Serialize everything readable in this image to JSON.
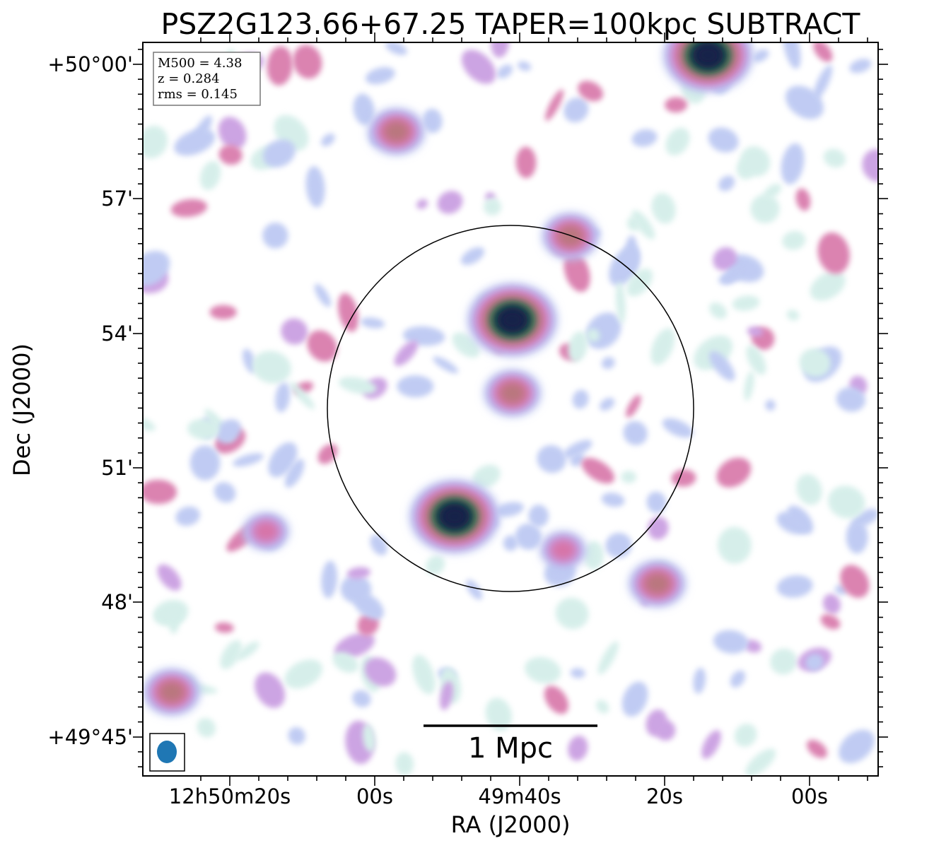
{
  "chart_data": {
    "type": "heatmap",
    "title": "PSZ2G123.66+67.25 TAPER=100kpc SUBTRACT",
    "xlabel": "RA (J2000)",
    "ylabel": "Dec (J2000)",
    "x_ticks": [
      "12h50m20s",
      "00s",
      "49m40s",
      "20s",
      "00s"
    ],
    "y_ticks": [
      "+50°00'",
      "57'",
      "54'",
      "51'",
      "48'",
      "+49°45'"
    ],
    "info": [
      "M500 = 4.38",
      "z = 0.284",
      "rms = 0.145"
    ],
    "scalebar_label": "1 Mpc",
    "colormap": [
      "#d2ede8",
      "#b9c6f2",
      "#c79ae0",
      "#d774a8",
      "#b9777e",
      "#2e7d4e",
      "#15224a"
    ],
    "sources": [
      {
        "ra": "12h49m41s",
        "dec": "+49°54'18\"",
        "level": 7
      },
      {
        "ra": "12h49m49s",
        "dec": "+49°49'55\"",
        "level": 7
      },
      {
        "ra": "12h49m14s",
        "dec": "+50°00'12\"",
        "level": 7
      },
      {
        "ra": "12h49m41s",
        "dec": "+49°52'40\"",
        "level": 4
      },
      {
        "ra": "12h49m33s",
        "dec": "+49°56'10\"",
        "level": 4
      },
      {
        "ra": "12h49m21s",
        "dec": "+49°48'25\"",
        "level": 4
      },
      {
        "ra": "12h49m57s",
        "dec": "+49°58'30\"",
        "level": 4
      },
      {
        "ra": "12h49m34s",
        "dec": "+49°49'10\"",
        "level": 3
      },
      {
        "ra": "12h50m28s",
        "dec": "+49°46'00\"",
        "level": 4
      },
      {
        "ra": "12h50m15s",
        "dec": "+49°49'35\"",
        "level": 3
      }
    ]
  }
}
